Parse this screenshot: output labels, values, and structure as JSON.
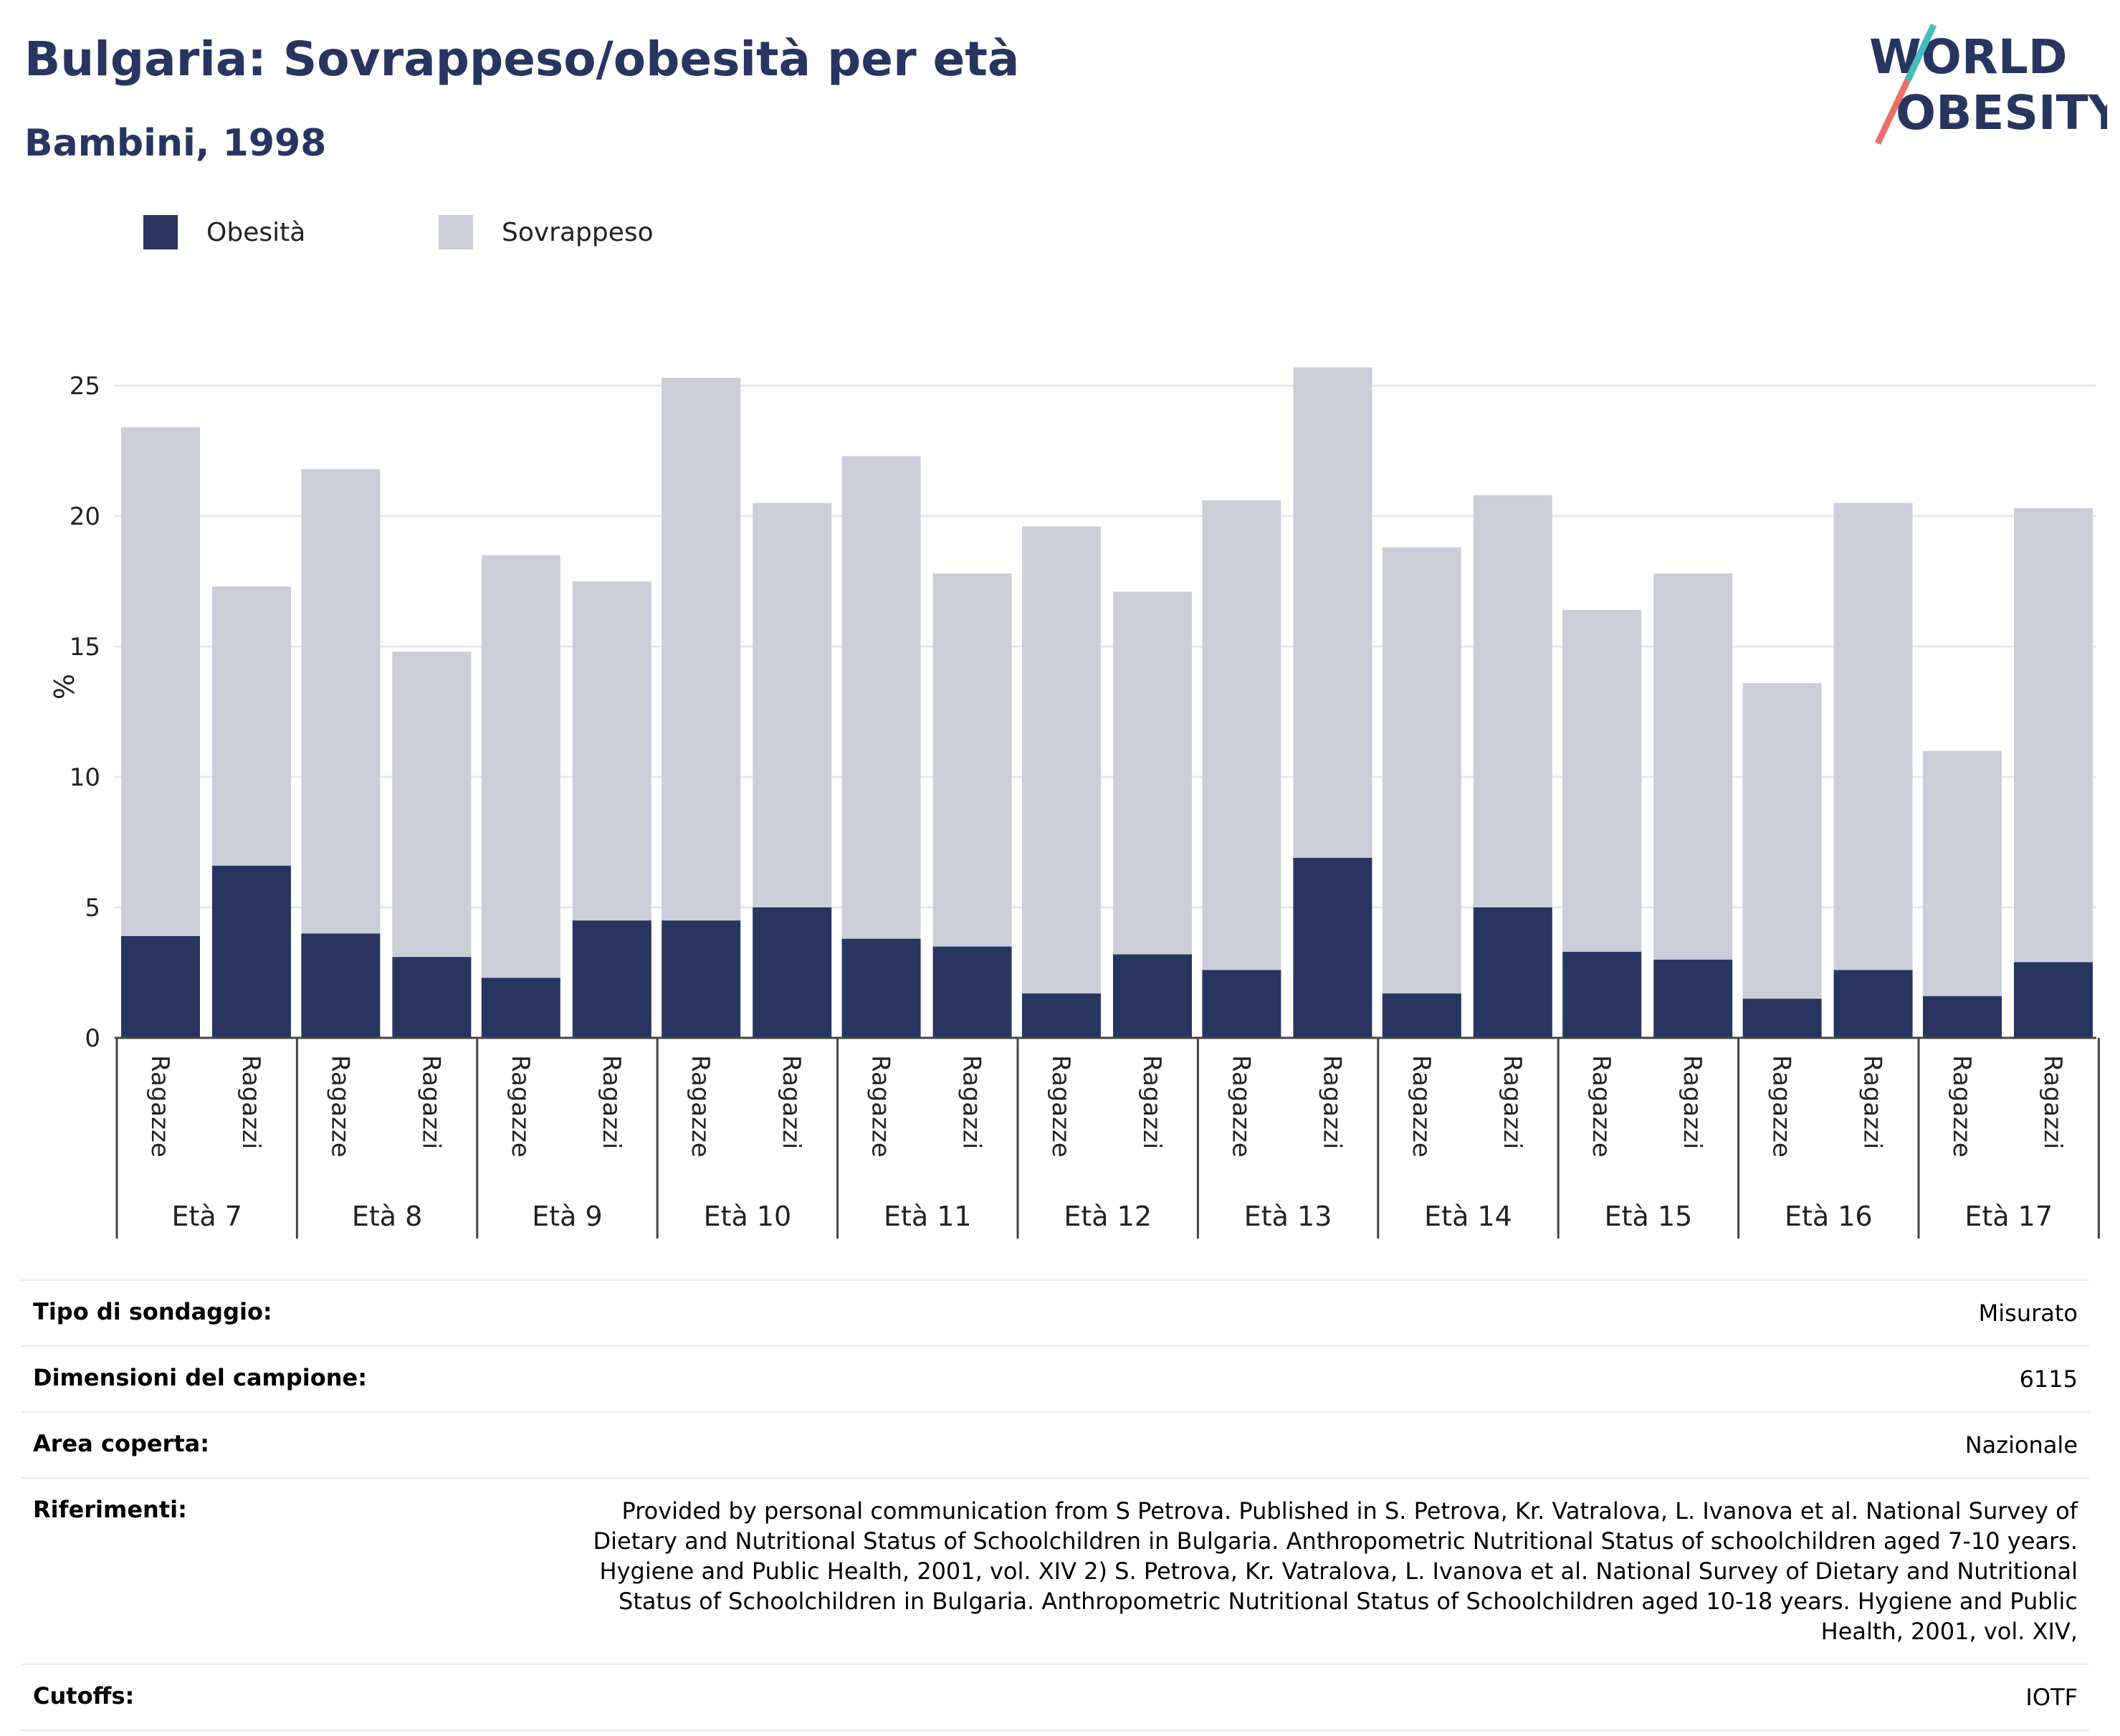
{
  "header": {
    "title": "Bulgaria: Sovrappeso/obesità per età",
    "subtitle": "Bambini, 1998"
  },
  "logo": {
    "line1": "WORLD",
    "line2": "OBESITY"
  },
  "legend": [
    {
      "label": "Obesità",
      "color": "#283561"
    },
    {
      "label": "Sovrappeso",
      "color": "#cbcdd9"
    }
  ],
  "chart_data": {
    "type": "bar",
    "stacked": true,
    "ylabel": "%",
    "ylim": [
      0,
      27
    ],
    "yticks": [
      0,
      5,
      10,
      15,
      20,
      25
    ],
    "grid": true,
    "legend_position": "top-left",
    "groups": [
      "Età 7",
      "Età 8",
      "Età 9",
      "Età 10",
      "Età 11",
      "Età 12",
      "Età 13",
      "Età 14",
      "Età 15",
      "Età 16",
      "Età 17"
    ],
    "subcategories": [
      "Ragazze",
      "Ragazzi"
    ],
    "series": [
      {
        "name": "Obesità",
        "color": "#283561",
        "values": [
          3.9,
          6.6,
          4.0,
          3.1,
          2.3,
          4.5,
          4.5,
          5.0,
          3.8,
          3.5,
          1.7,
          3.2,
          2.6,
          6.9,
          1.7,
          5.0,
          3.3,
          3.0,
          1.5,
          2.6,
          1.6,
          2.9
        ]
      },
      {
        "name": "Sovrappeso",
        "color": "#cbcdd9",
        "totals": [
          23.4,
          17.3,
          21.8,
          14.8,
          18.5,
          17.5,
          25.3,
          20.5,
          22.3,
          17.8,
          19.6,
          17.1,
          20.6,
          25.7,
          18.8,
          20.8,
          16.4,
          17.8,
          13.6,
          20.5,
          11.0,
          20.3
        ]
      }
    ]
  },
  "info": {
    "survey_type": {
      "label": "Tipo di sondaggio:",
      "value": "Misurato"
    },
    "sample_size": {
      "label": "Dimensioni del campione:",
      "value": "6115"
    },
    "area": {
      "label": "Area coperta:",
      "value": "Nazionale"
    },
    "references": {
      "label": "Riferimenti:",
      "value": "Provided by personal communication from S Petrova. Published in S. Petrova, Kr. Vatralova, L. Ivanova et al. National Survey of Dietary and Nutritional Status of Schoolchildren in Bulgaria. Anthropometric Nutritional Status of schoolchildren aged 7-10 years. Hygiene and Public Health, 2001, vol. XIV 2) S. Petrova, Kr. Vatralova, L. Ivanova et al. National Survey of Dietary and Nutritional Status of Schoolchildren in Bulgaria. Anthropometric Nutritional Status of Schoolchildren aged 10-18 years. Hygiene and Public Health, 2001, vol. XIV,"
    },
    "cutoffs": {
      "label": "Cutoffs:",
      "value": "IOTF"
    }
  }
}
